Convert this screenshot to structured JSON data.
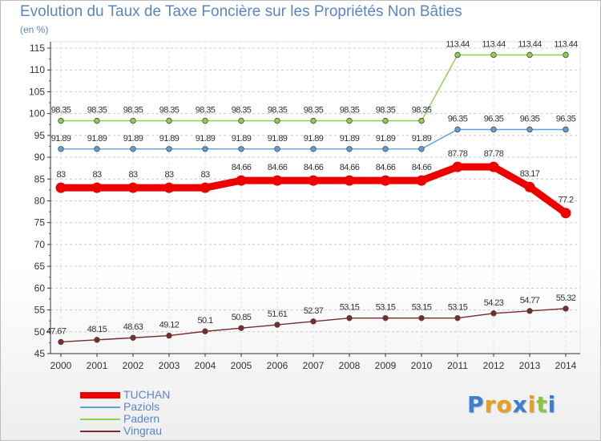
{
  "chart_data": {
    "type": "line",
    "title": "Evolution du Taux de Taxe Foncière sur les Propriétés Non Bâties",
    "subtitle": "(en %)",
    "xlabel": "",
    "ylabel": "(en %)",
    "ylim": [
      45,
      115
    ],
    "yticks": [
      45,
      50,
      55,
      60,
      65,
      70,
      75,
      80,
      85,
      90,
      95,
      100,
      105,
      110,
      115
    ],
    "grid": "horizontal dashed",
    "categories": [
      "2000",
      "2001",
      "2002",
      "2003",
      "2004",
      "2005",
      "2006",
      "2007",
      "2008",
      "2009",
      "2010",
      "2011",
      "2012",
      "2013",
      "2014"
    ],
    "series": [
      {
        "name": "Padern",
        "color": "#8cd04b",
        "values": [
          98.35,
          98.35,
          98.35,
          98.35,
          98.35,
          98.35,
          98.35,
          98.35,
          98.35,
          98.35,
          98.35,
          113.44,
          113.44,
          113.44,
          113.44
        ],
        "labels": [
          "98.35",
          "98.35",
          "98.35",
          "98.35",
          "98.35",
          "98.35",
          "98.35",
          "98.35",
          "98.35",
          "98.35",
          "98.35",
          "113.44",
          "113.44",
          "113.44",
          "113.44"
        ]
      },
      {
        "name": "Paziols",
        "color": "#5ba0d8",
        "values": [
          91.89,
          91.89,
          91.89,
          91.89,
          91.89,
          91.89,
          91.89,
          91.89,
          91.89,
          91.89,
          91.89,
          96.35,
          96.35,
          96.35,
          96.35
        ],
        "labels": [
          "91.89",
          "91.89",
          "91.89",
          "91.89",
          "91.89",
          "91.89",
          "91.89",
          "91.89",
          "91.89",
          "91.89",
          "91.89",
          "96.35",
          "96.35",
          "96.35",
          "96.35"
        ]
      },
      {
        "name": "TUCHAN",
        "color": "#ee0000",
        "values": [
          83,
          83,
          83,
          83,
          83,
          84.66,
          84.66,
          84.66,
          84.66,
          84.66,
          84.66,
          87.78,
          87.78,
          83.17,
          77.2
        ],
        "labels": [
          "83",
          "83",
          "83",
          "83",
          "83",
          "84.66",
          "84.66",
          "84.66",
          "84.66",
          "84.66",
          "84.66",
          "87.78",
          "87.78",
          "83.17",
          "77.2"
        ]
      },
      {
        "name": "Vingrau",
        "color": "#7a2a2a",
        "values": [
          47.67,
          48.15,
          48.63,
          49.12,
          50.1,
          50.85,
          51.61,
          52.37,
          53.15,
          53.15,
          53.15,
          53.15,
          54.23,
          54.77,
          55.32
        ],
        "labels": [
          "47.67",
          "48.15",
          "48.63",
          "49.12",
          "50.1",
          "50.85",
          "51.61",
          "52.37",
          "53.15",
          "53.15",
          "53.15",
          "53.15",
          "54.23",
          "54.77",
          "55.32"
        ]
      }
    ],
    "legend": {
      "placement": "bottom-left",
      "entries": [
        "TUCHAN",
        "Paziols",
        "Padern",
        "Vingrau"
      ]
    }
  },
  "logo": {
    "letters": [
      "P",
      "r",
      "o",
      "x",
      "i",
      "t",
      "i"
    ],
    "colors": [
      "#3a7fd0",
      "#e8a020",
      "#e8a020",
      "#3a7fd0",
      "#e8a020",
      "#8cc63f",
      "#3a7fd0"
    ]
  }
}
